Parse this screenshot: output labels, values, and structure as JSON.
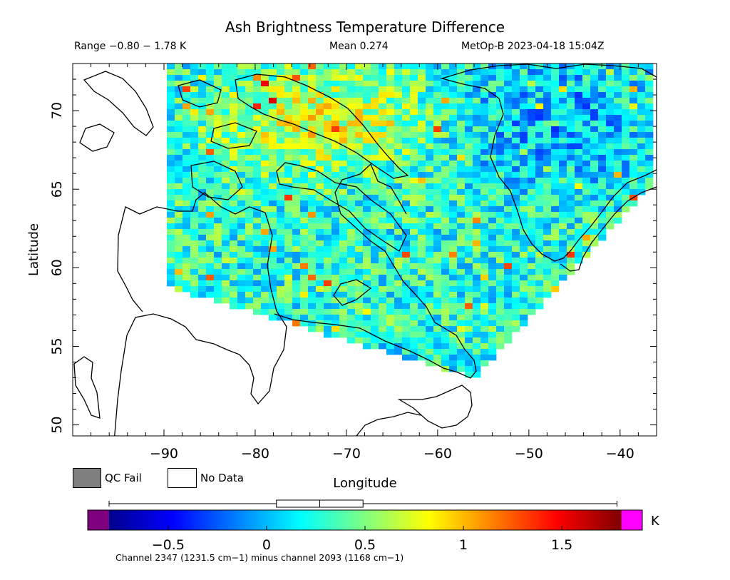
{
  "header": {
    "title": "Ash Brightness Temperature Difference",
    "range": "Range −0.80 − 1.78 K",
    "mean": "Mean 0.274",
    "satellite_time": "MetOp-B 2023-04-18 15:04Z"
  },
  "legend": {
    "qc_fail_label": "QC Fail",
    "no_data_label": "No Data",
    "qc_fail_color": "#7f7f7f",
    "no_data_color": "#ffffff"
  },
  "colorbar": {
    "unit": "K",
    "caption": "Channel 2347 (1231.5 cm−1) minus channel 2093 (1168 cm−1)",
    "ticks": [
      "−0.5",
      "0",
      "0.5",
      "1",
      "1.5"
    ],
    "range": [
      -0.8,
      1.8
    ],
    "under_color": "#7f007f",
    "over_color": "#ff00ff",
    "boxplot": {
      "min": -0.8,
      "q1": 0.05,
      "median": 0.27,
      "q3": 0.49,
      "max": 1.78
    }
  },
  "chart_data": {
    "type": "heatmap",
    "xlabel": "Longitude",
    "ylabel": "Latitude",
    "xlim": [
      -100,
      -36
    ],
    "ylim": [
      49.3,
      73
    ],
    "x_ticks": [
      "−90",
      "−80",
      "−70",
      "−60",
      "−50",
      "−40"
    ],
    "x_tick_values": [
      -90,
      -80,
      -70,
      -60,
      -50,
      -40
    ],
    "y_ticks": [
      "50",
      "55",
      "60",
      "65",
      "70"
    ],
    "y_tick_values": [
      50,
      55,
      60,
      65,
      70
    ],
    "swath": {
      "corners": [
        [
          -89.4,
          73
        ],
        [
          -89.4,
          58.7
        ],
        [
          -56,
          53
        ],
        [
          -36,
          65.7
        ],
        [
          -36,
          73
        ]
      ],
      "value_min": -0.8,
      "value_max": 1.78,
      "mean": 0.274
    },
    "colorscale": [
      "#00008f",
      "#0000ff",
      "#0080ff",
      "#00ffff",
      "#80ff80",
      "#ffff00",
      "#ff8000",
      "#ff0000",
      "#800000"
    ]
  }
}
